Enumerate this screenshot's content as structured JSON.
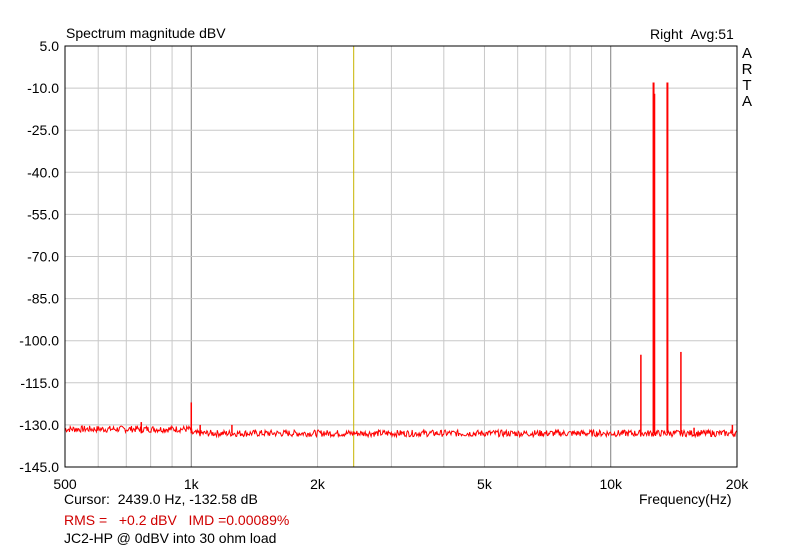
{
  "header": {
    "title": "Spectrum magnitude dBV",
    "channel": "Right",
    "avg": "Avg:51",
    "logo_letters": [
      "A",
      "R",
      "T",
      "A"
    ]
  },
  "footer": {
    "cursor_label": "Cursor:",
    "cursor_value": "2439.0 Hz, -132.58 dB",
    "rms_label": "RMS =",
    "rms_value": "+0.2 dBV",
    "imd_label": "IMD =0.00089%",
    "note": "JC2-HP @ 0dBV into 30 ohm load"
  },
  "colors": {
    "trace": "#ff0000",
    "cursor": "#c8b400",
    "grid": "#c8c8c8",
    "major_grid": "#808080",
    "text_red": "#d00000"
  },
  "chart_data": {
    "type": "line",
    "title": "Spectrum magnitude dBV",
    "xlabel": "Frequency(Hz)",
    "ylabel": "",
    "x_scale": "log",
    "xlim": [
      500,
      20000
    ],
    "ylim": [
      -145,
      5
    ],
    "grid": true,
    "x_ticks": [
      500,
      1000,
      2000,
      5000,
      10000,
      20000
    ],
    "x_tick_labels": [
      "500",
      "1k",
      "2k",
      "5k",
      "10k",
      "20k"
    ],
    "y_ticks": [
      5,
      -10,
      -25,
      -40,
      -55,
      -70,
      -85,
      -100,
      -115,
      -130,
      -145
    ],
    "y_tick_labels": [
      "5.0",
      "-10.0",
      "-25.0",
      "-40.0",
      "-55.0",
      "-70.0",
      "-85.0",
      "-100.0",
      "-115.0",
      "-130.0",
      "-145.0"
    ],
    "cursor_x": 2439.0,
    "noise_floor": -133,
    "series": [
      {
        "peaks": [
          {
            "x": 760,
            "y": -129
          },
          {
            "x": 1000,
            "y": -122
          },
          {
            "x": 1050,
            "y": -130
          },
          {
            "x": 1250,
            "y": -130
          },
          {
            "x": 11800,
            "y": -105
          },
          {
            "x": 12650,
            "y": -8
          },
          {
            "x": 12700,
            "y": -12
          },
          {
            "x": 13650,
            "y": -8
          },
          {
            "x": 14700,
            "y": -104
          },
          {
            "x": 15800,
            "y": -131
          },
          {
            "x": 19500,
            "y": -130
          }
        ]
      }
    ]
  }
}
